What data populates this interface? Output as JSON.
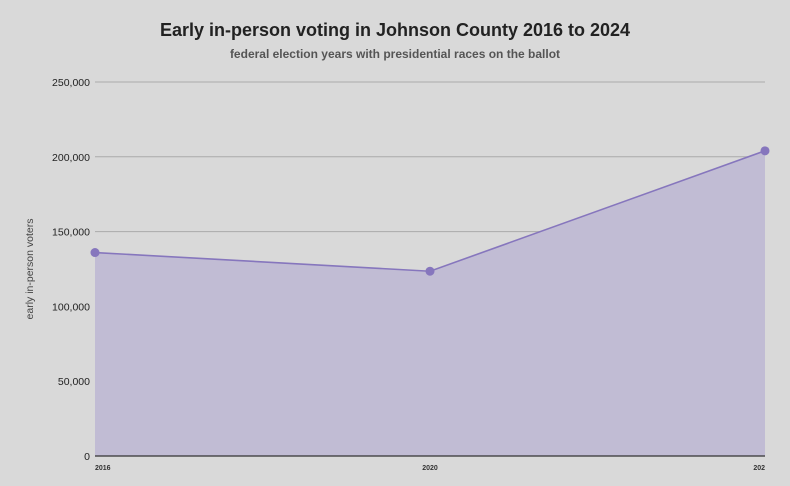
{
  "chart_data": {
    "type": "area",
    "title": "Early in-person voting in Johnson County 2016 to 2024",
    "subtitle": "federal election years with presidential races on the ballot",
    "xlabel": "",
    "ylabel": "early in-person voters",
    "categories": [
      "2016",
      "2020",
      "202"
    ],
    "series": [
      {
        "name": "early in-person voters",
        "values": [
          136000,
          123500,
          204000
        ]
      }
    ],
    "ylim": [
      0,
      250000
    ],
    "yticks": [
      0,
      50000,
      100000,
      150000,
      200000,
      250000
    ],
    "ytick_labels": [
      "0",
      "50,000",
      "100,000",
      "150,000",
      "200,000",
      "250,000"
    ],
    "grid": true,
    "colors": {
      "line": "#8676bd",
      "fill": "#c1bcd4",
      "marker": "#8676bd",
      "grid": "#aaaaaa",
      "background": "#d9d9d9"
    }
  }
}
